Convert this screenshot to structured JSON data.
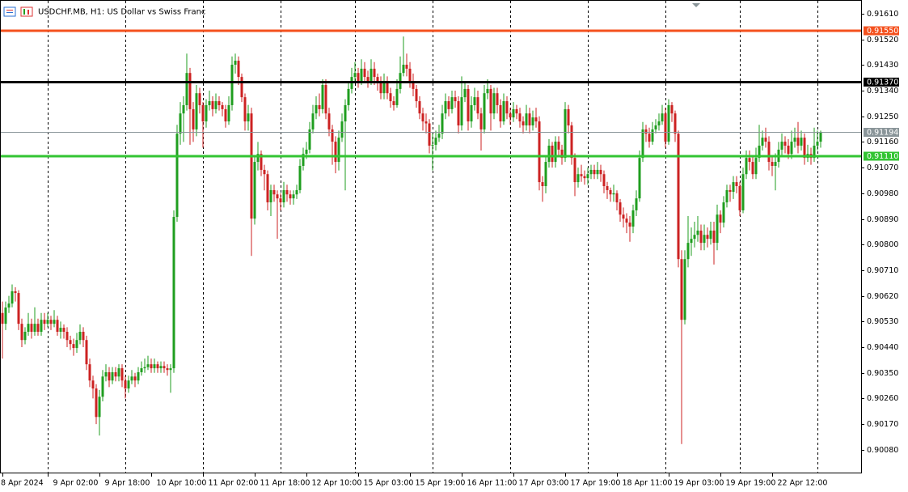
{
  "chart_data": {
    "type": "candlestick",
    "title": "USDCHF.MB, H1:  US Dollar vs Swiss Franc",
    "up_color": "#1f9e1f",
    "down_color": "#cc2222",
    "ylim": [
      0.9,
      0.91658
    ],
    "yticks": [
      {
        "value": 0.9161,
        "label": "0.91610"
      },
      {
        "value": 0.9152,
        "label": "0.91520"
      },
      {
        "value": 0.9143,
        "label": "0.91430"
      },
      {
        "value": 0.9134,
        "label": "0.91340"
      },
      {
        "value": 0.9125,
        "label": "0.91250"
      },
      {
        "value": 0.9116,
        "label": "0.91160"
      },
      {
        "value": 0.9107,
        "label": "0.91070"
      },
      {
        "value": 0.9098,
        "label": "0.90980"
      },
      {
        "value": 0.9089,
        "label": "0.90890"
      },
      {
        "value": 0.908,
        "label": "0.90800"
      },
      {
        "value": 0.9071,
        "label": "0.90710"
      },
      {
        "value": 0.9062,
        "label": "0.90620"
      },
      {
        "value": 0.9053,
        "label": "0.90530"
      },
      {
        "value": 0.9044,
        "label": "0.90440"
      },
      {
        "value": 0.9035,
        "label": "0.90350"
      },
      {
        "value": 0.9026,
        "label": "0.90260"
      },
      {
        "value": 0.9017,
        "label": "0.90170"
      },
      {
        "value": 0.9008,
        "label": "0.90080"
      }
    ],
    "xticks": [
      {
        "value": 0,
        "label": "8 Apr 2024"
      },
      {
        "value": 14,
        "label": "9 Apr 02:00"
      },
      {
        "value": 30,
        "label": "9 Apr 18:00"
      },
      {
        "value": 46,
        "label": "10 Apr 10:00"
      },
      {
        "value": 62,
        "label": "11 Apr 02:00"
      },
      {
        "value": 78,
        "label": "11 Apr 18:00"
      },
      {
        "value": 94,
        "label": "12 Apr 10:00"
      },
      {
        "value": 110,
        "label": "15 Apr 03:00"
      },
      {
        "value": 126,
        "label": "15 Apr 19:00"
      },
      {
        "value": 142,
        "label": "16 Apr 11:00"
      },
      {
        "value": 158,
        "label": "17 Apr 03:00"
      },
      {
        "value": 174,
        "label": "17 Apr 19:00"
      },
      {
        "value": 190,
        "label": "18 Apr 11:00"
      },
      {
        "value": 206,
        "label": "19 Apr 03:00"
      },
      {
        "value": 222,
        "label": "19 Apr 19:00"
      },
      {
        "value": 238,
        "label": "22 Apr 12:00"
      }
    ],
    "xgrid": [
      14,
      38,
      62,
      86,
      109,
      133,
      157,
      181,
      205,
      228,
      252
    ],
    "levels": [
      {
        "value": 0.9155,
        "label": "0.91550",
        "color": "#f4511e"
      },
      {
        "value": 0.9137,
        "label": "0.91370",
        "color": "#000000"
      },
      {
        "value": 0.9111,
        "label": "0.91110",
        "color": "#33c433"
      }
    ],
    "last_price": {
      "value": 0.91194,
      "label": "0.91194",
      "color": "#8a9599"
    },
    "open": [
      0.9056,
      0.90522,
      0.90579,
      0.90593,
      0.90636,
      0.9063,
      0.90522,
      0.90465,
      0.90494,
      0.90522,
      0.90494,
      0.90522,
      0.90494,
      0.90536,
      0.90522,
      0.90536,
      0.90522,
      0.90536,
      0.90494,
      0.90508,
      0.90494,
      0.90465,
      0.90451,
      0.90437,
      0.90465,
      0.90494,
      0.90465,
      0.9038,
      0.90323,
      0.90295,
      0.90195,
      0.90266,
      0.90337,
      0.90352,
      0.90323,
      0.90352,
      0.90337,
      0.90366,
      0.90323,
      0.90295,
      0.90323,
      0.90337,
      0.90323,
      0.90352,
      0.90366,
      0.9037,
      0.9038,
      0.90366,
      0.9038,
      0.90366,
      0.90374,
      0.90366,
      0.9036,
      0.90366,
      0.90897,
      0.91189,
      0.9126,
      0.91289,
      0.91402,
      0.91275,
      0.91204,
      0.91331,
      0.91289,
      0.91232,
      0.91289,
      0.91303,
      0.91275,
      0.91303,
      0.91289,
      0.91275,
      0.91232,
      0.91289,
      0.91431,
      0.91445,
      0.91388,
      0.91317,
      0.91232,
      0.9126,
      0.90891,
      0.9109,
      0.91118,
      0.91062,
      0.91047,
      0.90948,
      0.90991,
      0.90976,
      0.90962,
      0.90948,
      0.90991,
      0.90976,
      0.90962,
      0.90976,
      0.90991,
      0.91076,
      0.91118,
      0.91133,
      0.91204,
      0.9126,
      0.91289,
      0.91275,
      0.9136,
      0.9126,
      0.91204,
      0.91161,
      0.9109,
      0.91175,
      0.91232,
      0.91289,
      0.91346,
      0.91388,
      0.91402,
      0.91374,
      0.91417,
      0.91388,
      0.91374,
      0.91417,
      0.91388,
      0.91374,
      0.91331,
      0.91374,
      0.91331,
      0.91303,
      0.91289,
      0.91346,
      0.91402,
      0.91431,
      0.91417,
      0.91374,
      0.91346,
      0.91303,
      0.9126,
      0.91232,
      0.91225,
      0.91147,
      0.9115,
      0.91175,
      0.91189,
      0.9126,
      0.91303,
      0.91275,
      0.91317,
      0.91303,
      0.91218,
      0.91317,
      0.91346,
      0.91232,
      0.91289,
      0.91317,
      0.9126,
      0.91204,
      0.91331,
      0.91346,
      0.9126,
      0.91331,
      0.91289,
      0.91232,
      0.91303,
      0.9126,
      0.91246,
      0.91275,
      0.9126,
      0.91232,
      0.91218,
      0.9126,
      0.91218,
      0.91246,
      0.91232,
      0.91019,
      0.91005,
      0.9109,
      0.91147,
      0.9109,
      0.91161,
      0.91133,
      0.91104,
      0.91275,
      0.91218,
      0.91104,
      0.91019,
      0.91047,
      0.9104,
      0.91033,
      0.91047,
      0.91062,
      0.91047,
      0.91062,
      0.91047,
      0.91005,
      0.90991,
      0.90976,
      0.9098,
      0.90948,
      0.90905,
      0.90891,
      0.90877,
      0.90863,
      0.9092,
      0.90962,
      0.91104,
      0.91204,
      0.91189,
      0.91161,
      0.91204,
      0.91218,
      0.91232,
      0.9126,
      0.91161,
      0.91289,
      0.9126,
      0.91189,
      0.90749,
      0.90536,
      0.90749,
      0.90806,
      0.9082,
      0.90834,
      0.90849,
      0.90806,
      0.90834,
      0.9082,
      0.90849,
      0.90806,
      0.90905,
      0.90877,
      0.90948,
      0.90991,
      0.90985,
      0.91019,
      0.91005,
      0.9092,
      0.91047,
      0.91104,
      0.9109,
      0.91047,
      0.91104,
      0.91147,
      0.91175,
      0.91161,
      0.9109,
      0.91076,
      0.9109,
      0.91133,
      0.91161,
      0.91147,
      0.91118,
      0.91161,
      0.91175,
      0.91147,
      0.91175,
      0.91104,
      0.91118,
      0.91104,
      0.91147,
      0.91161
    ],
    "high": [
      0.906,
      0.906,
      0.9062,
      0.9066,
      0.9065,
      0.9064,
      0.9054,
      0.9051,
      0.9056,
      0.9054,
      0.9058,
      0.9054,
      0.9056,
      0.9056,
      0.9056,
      0.9055,
      0.9057,
      0.9055,
      0.9053,
      0.9052,
      0.9051,
      0.9048,
      0.9047,
      0.9049,
      0.9052,
      0.9051,
      0.9048,
      0.904,
      0.9034,
      0.9031,
      0.9029,
      0.9036,
      0.9038,
      0.9037,
      0.9037,
      0.9037,
      0.9038,
      0.9038,
      0.9034,
      0.9034,
      0.9036,
      0.9035,
      0.9037,
      0.9039,
      0.904,
      0.9041,
      0.904,
      0.904,
      0.9039,
      0.9039,
      0.9039,
      0.9038,
      0.9038,
      0.9092,
      0.9122,
      0.913,
      0.9132,
      0.9147,
      0.9142,
      0.913,
      0.9136,
      0.9135,
      0.913,
      0.9131,
      0.9134,
      0.9132,
      0.9133,
      0.9132,
      0.913,
      0.9129,
      0.9132,
      0.9146,
      0.9147,
      0.9146,
      0.914,
      0.9133,
      0.9129,
      0.9128,
      0.9111,
      0.9116,
      0.9113,
      0.9108,
      0.9106,
      0.9101,
      0.9101,
      0.9099,
      0.9098,
      0.9102,
      0.9101,
      0.9099,
      0.9099,
      0.9101,
      0.911,
      0.9114,
      0.9116,
      0.9123,
      0.9129,
      0.9132,
      0.9133,
      0.9138,
      0.9138,
      0.9128,
      0.9122,
      0.9118,
      0.912,
      0.9126,
      0.9131,
      0.9137,
      0.9142,
      0.9144,
      0.9142,
      0.9145,
      0.9144,
      0.9141,
      0.9145,
      0.9144,
      0.914,
      0.9139,
      0.914,
      0.9139,
      0.9135,
      0.9132,
      0.9138,
      0.9146,
      0.9153,
      0.9147,
      0.9144,
      0.914,
      0.9136,
      0.9132,
      0.9128,
      0.9126,
      0.9124,
      0.9119,
      0.912,
      0.9122,
      0.9129,
      0.9133,
      0.9132,
      0.9134,
      0.9134,
      0.9132,
      0.9139,
      0.9137,
      0.9136,
      0.9132,
      0.9135,
      0.9134,
      0.9128,
      0.9136,
      0.9138,
      0.9136,
      0.9135,
      0.9135,
      0.9131,
      0.9133,
      0.9132,
      0.9128,
      0.913,
      0.9129,
      0.9128,
      0.9125,
      0.9129,
      0.9128,
      0.9127,
      0.9128,
      0.9125,
      0.9104,
      0.9111,
      0.9117,
      0.9116,
      0.9118,
      0.9118,
      0.9115,
      0.913,
      0.9129,
      0.9123,
      0.9112,
      0.9107,
      0.9108,
      0.9106,
      0.9107,
      0.9108,
      0.9108,
      0.9109,
      0.9108,
      0.9106,
      0.9102,
      0.91,
      0.9101,
      0.9099,
      0.9096,
      0.9093,
      0.9091,
      0.909,
      0.9094,
      0.9099,
      0.9113,
      0.9123,
      0.9122,
      0.9121,
      0.9123,
      0.9124,
      0.9126,
      0.9129,
      0.9128,
      0.9131,
      0.913,
      0.9127,
      0.912,
      0.9078,
      0.9078,
      0.909,
      0.9086,
      0.9088,
      0.909,
      0.9087,
      0.9087,
      0.9086,
      0.9088,
      0.9088,
      0.9094,
      0.9092,
      0.9097,
      0.9101,
      0.9101,
      0.9104,
      0.9104,
      0.9102,
      0.9107,
      0.9113,
      0.9113,
      0.9111,
      0.9114,
      0.9122,
      0.912,
      0.9121,
      0.9118,
      0.9111,
      0.9112,
      0.9116,
      0.9119,
      0.9118,
      0.9117,
      0.912,
      0.9121,
      0.9123,
      0.912,
      0.9119,
      0.9115,
      0.9114,
      0.9121,
      0.912,
      0.912
    ],
    "low": [
      0.904,
      0.905,
      0.9056,
      0.9058,
      0.906,
      0.905,
      0.9044,
      0.9045,
      0.9048,
      0.9047,
      0.9048,
      0.9048,
      0.9048,
      0.905,
      0.9051,
      0.905,
      0.9051,
      0.9048,
      0.9047,
      0.9047,
      0.9044,
      0.9043,
      0.9041,
      0.9042,
      0.9045,
      0.9044,
      0.9036,
      0.903,
      0.9026,
      0.9017,
      0.9013,
      0.9025,
      0.9032,
      0.903,
      0.9031,
      0.9032,
      0.9032,
      0.903,
      0.9026,
      0.9028,
      0.9031,
      0.903,
      0.9031,
      0.9034,
      0.9035,
      0.9036,
      0.9035,
      0.9035,
      0.9035,
      0.9035,
      0.9035,
      0.9034,
      0.9028,
      0.9035,
      0.9088,
      0.9115,
      0.9116,
      0.9127,
      0.9115,
      0.9116,
      0.9118,
      0.9126,
      0.9114,
      0.9121,
      0.9127,
      0.9125,
      0.9126,
      0.9127,
      0.9125,
      0.9121,
      0.9122,
      0.9127,
      0.914,
      0.9136,
      0.913,
      0.912,
      0.912,
      0.9076,
      0.9087,
      0.9106,
      0.9104,
      0.9099,
      0.9092,
      0.909,
      0.9095,
      0.9082,
      0.9092,
      0.9093,
      0.9095,
      0.9094,
      0.9094,
      0.9096,
      0.9098,
      0.9106,
      0.911,
      0.9112,
      0.9119,
      0.9124,
      0.9125,
      0.9126,
      0.9124,
      0.9118,
      0.9108,
      0.9105,
      0.9106,
      0.9116,
      0.9099,
      0.9127,
      0.9133,
      0.9137,
      0.9135,
      0.9136,
      0.9137,
      0.9135,
      0.9136,
      0.9136,
      0.9134,
      0.9131,
      0.9131,
      0.9131,
      0.9128,
      0.9127,
      0.9128,
      0.9133,
      0.9139,
      0.9139,
      0.9135,
      0.9132,
      0.9128,
      0.9124,
      0.912,
      0.9119,
      0.9112,
      0.9106,
      0.9113,
      0.9116,
      0.9117,
      0.9124,
      0.9125,
      0.9126,
      0.9128,
      0.9119,
      0.912,
      0.913,
      0.912,
      0.9121,
      0.9127,
      0.9124,
      0.9113,
      0.9119,
      0.9131,
      0.912,
      0.9124,
      0.9126,
      0.9121,
      0.9122,
      0.9124,
      0.9122,
      0.9123,
      0.9124,
      0.9121,
      0.9119,
      0.912,
      0.9119,
      0.912,
      0.9121,
      0.9099,
      0.9095,
      0.9098,
      0.9107,
      0.9107,
      0.9107,
      0.9111,
      0.9108,
      0.9109,
      0.9119,
      0.9108,
      0.9097,
      0.91,
      0.9102,
      0.9101,
      0.9101,
      0.9103,
      0.9103,
      0.9103,
      0.9102,
      0.9098,
      0.9096,
      0.9095,
      0.9095,
      0.9092,
      0.9088,
      0.9086,
      0.9084,
      0.9081,
      0.9084,
      0.909,
      0.9095,
      0.9109,
      0.9116,
      0.9114,
      0.9115,
      0.9119,
      0.912,
      0.9122,
      0.9114,
      0.9115,
      0.9123,
      0.9116,
      0.9072,
      0.901,
      0.9052,
      0.9072,
      0.9076,
      0.9079,
      0.9081,
      0.9078,
      0.9078,
      0.9079,
      0.908,
      0.9073,
      0.9078,
      0.9084,
      0.9086,
      0.9093,
      0.9095,
      0.9096,
      0.9098,
      0.909,
      0.9091,
      0.9103,
      0.9106,
      0.9103,
      0.9103,
      0.9109,
      0.9113,
      0.9114,
      0.9106,
      0.9104,
      0.9099,
      0.9107,
      0.9111,
      0.9112,
      0.911,
      0.911,
      0.9114,
      0.9112,
      0.9113,
      0.9108,
      0.9109,
      0.9108,
      0.9109,
      0.9113,
      0.9114
    ],
    "close": [
      0.90522,
      0.90579,
      0.90593,
      0.90636,
      0.9063,
      0.90522,
      0.90465,
      0.90494,
      0.90522,
      0.90494,
      0.90522,
      0.90494,
      0.90536,
      0.90522,
      0.90536,
      0.90522,
      0.90536,
      0.90494,
      0.90508,
      0.90494,
      0.90465,
      0.90451,
      0.90437,
      0.90465,
      0.90494,
      0.90465,
      0.9038,
      0.90323,
      0.90295,
      0.90195,
      0.90266,
      0.90337,
      0.90352,
      0.90323,
      0.90352,
      0.90337,
      0.90366,
      0.90323,
      0.90295,
      0.90323,
      0.90337,
      0.90323,
      0.90352,
      0.90366,
      0.9037,
      0.9038,
      0.90366,
      0.9038,
      0.90366,
      0.90374,
      0.90366,
      0.9036,
      0.90366,
      0.90897,
      0.91189,
      0.9126,
      0.91289,
      0.91402,
      0.91275,
      0.91204,
      0.91331,
      0.91289,
      0.91232,
      0.91289,
      0.91303,
      0.91275,
      0.91303,
      0.91289,
      0.91275,
      0.91232,
      0.91289,
      0.91431,
      0.91445,
      0.91388,
      0.91317,
      0.91232,
      0.9126,
      0.90891,
      0.9109,
      0.91118,
      0.91062,
      0.91047,
      0.90948,
      0.90991,
      0.90976,
      0.90962,
      0.90948,
      0.90991,
      0.90976,
      0.90962,
      0.90976,
      0.90991,
      0.91076,
      0.91118,
      0.91133,
      0.91204,
      0.9126,
      0.91289,
      0.91275,
      0.9136,
      0.9126,
      0.91204,
      0.91161,
      0.9109,
      0.91175,
      0.91232,
      0.91289,
      0.91346,
      0.91388,
      0.91402,
      0.91374,
      0.91417,
      0.91388,
      0.91374,
      0.91417,
      0.91388,
      0.91374,
      0.91331,
      0.91374,
      0.91331,
      0.91303,
      0.91289,
      0.91346,
      0.91402,
      0.91431,
      0.91417,
      0.91374,
      0.91346,
      0.91303,
      0.9126,
      0.91232,
      0.91225,
      0.91147,
      0.9115,
      0.91175,
      0.91189,
      0.9126,
      0.91303,
      0.91275,
      0.91317,
      0.91303,
      0.91218,
      0.91317,
      0.91346,
      0.91232,
      0.91289,
      0.91317,
      0.9126,
      0.91204,
      0.91331,
      0.91346,
      0.9126,
      0.91331,
      0.91289,
      0.91232,
      0.91303,
      0.9126,
      0.91246,
      0.91275,
      0.9126,
      0.91232,
      0.91218,
      0.9126,
      0.91218,
      0.91246,
      0.91232,
      0.91019,
      0.91005,
      0.9109,
      0.91147,
      0.9109,
      0.91161,
      0.91133,
      0.91104,
      0.91275,
      0.91218,
      0.91104,
      0.91019,
      0.91047,
      0.9104,
      0.91033,
      0.91047,
      0.91062,
      0.91047,
      0.91062,
      0.91047,
      0.91005,
      0.90991,
      0.90976,
      0.9098,
      0.90948,
      0.90905,
      0.90891,
      0.90877,
      0.90863,
      0.9092,
      0.90962,
      0.91104,
      0.91204,
      0.91189,
      0.91161,
      0.91204,
      0.91218,
      0.91232,
      0.9126,
      0.91161,
      0.91289,
      0.9126,
      0.91189,
      0.90749,
      0.90536,
      0.90749,
      0.90806,
      0.9082,
      0.90834,
      0.90849,
      0.90806,
      0.90834,
      0.9082,
      0.90849,
      0.90806,
      0.90905,
      0.90877,
      0.90948,
      0.90991,
      0.90985,
      0.91019,
      0.91005,
      0.9092,
      0.91047,
      0.91104,
      0.9109,
      0.91047,
      0.91104,
      0.91147,
      0.91175,
      0.91161,
      0.9109,
      0.91076,
      0.9109,
      0.91133,
      0.91161,
      0.91147,
      0.91118,
      0.91161,
      0.91175,
      0.91147,
      0.91175,
      0.91104,
      0.91118,
      0.91104,
      0.91147,
      0.91161,
      0.91194
    ]
  }
}
